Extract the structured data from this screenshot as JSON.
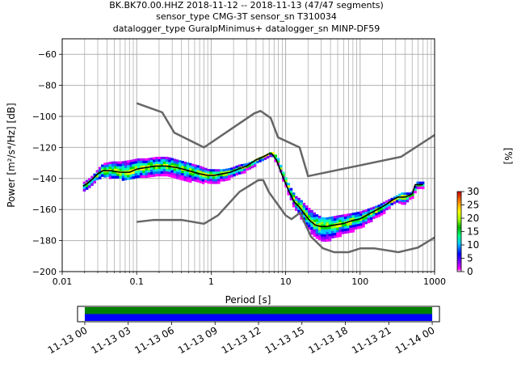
{
  "title_lines": [
    "BK.BK70.00.HHZ   2018-11-12 -- 2018-11-13  (47/47 segments)",
    "sensor_type CMG-3T sensor_sn T310034",
    "datalogger_type GuralpMinimus+ datalogger_sn MINP-DF59"
  ],
  "colors": {
    "median": "#000000",
    "noise_models": "#666666",
    "grid": "#b0b0b0",
    "coverage_green": "#008000",
    "coverage_blue": "#0000ff"
  },
  "chart_data": [
    {
      "type": "heatmap",
      "subtype": "probabilistic-psd",
      "xlabel": "Period [s]",
      "ylabel": "Power [m²/s⁴/Hz] [dB]",
      "x_scale": "log",
      "xlim": [
        0.01,
        1000
      ],
      "ylim": [
        -200,
        -50
      ],
      "xticks": [
        0.01,
        0.1,
        1,
        10,
        100,
        1000
      ],
      "xtick_labels": [
        "0.01",
        "0.1",
        "1",
        "10",
        "100",
        "1000"
      ],
      "yticks": [
        -200,
        -180,
        -160,
        -140,
        -120,
        -100,
        -80,
        -60
      ],
      "ytick_labels": [
        "−200",
        "−180",
        "−160",
        "−140",
        "−120",
        "−100",
        "−80",
        "−60"
      ],
      "grid": true,
      "colorbar": {
        "label": "[%]",
        "range": [
          0,
          30
        ],
        "ticks": [
          0,
          5,
          10,
          15,
          20,
          25,
          30
        ],
        "tick_labels": [
          "0",
          "5",
          "10",
          "15",
          "20",
          "25",
          "30"
        ],
        "colormap": "pqlx"
      },
      "median": {
        "x": [
          0.019,
          0.022,
          0.026,
          0.03,
          0.035,
          0.045,
          0.06,
          0.08,
          0.1,
          0.13,
          0.18,
          0.25,
          0.35,
          0.5,
          0.7,
          0.9,
          1.1,
          1.4,
          1.8,
          2.3,
          3,
          4,
          5,
          6,
          6.5,
          7.5,
          9,
          11,
          13,
          15,
          18,
          21,
          25,
          30,
          35,
          45,
          60,
          80,
          100,
          130,
          170,
          220,
          270,
          320,
          350,
          400,
          450,
          500,
          550,
          700
        ],
        "y": [
          -145,
          -143,
          -140,
          -137,
          -135,
          -135,
          -136,
          -136,
          -134,
          -133,
          -132,
          -132,
          -133,
          -135,
          -137,
          -138,
          -138,
          -137,
          -136,
          -134,
          -132,
          -128,
          -126,
          -124,
          -124,
          -128,
          -138,
          -148,
          -155,
          -158,
          -163,
          -167,
          -170,
          -171,
          -171,
          -170,
          -169,
          -167,
          -166,
          -163,
          -160,
          -157,
          -154,
          -152,
          -152,
          -152,
          -151,
          -150,
          -144,
          -144
        ]
      },
      "envelope": {
        "x": [
          0.019,
          0.022,
          0.026,
          0.03,
          0.035,
          0.045,
          0.06,
          0.08,
          0.1,
          0.13,
          0.18,
          0.25,
          0.35,
          0.5,
          0.7,
          0.9,
          1.1,
          1.4,
          1.8,
          2.3,
          3,
          4,
          5,
          6,
          6.5,
          7.5,
          9,
          11,
          13,
          15,
          18,
          21,
          25,
          30,
          35,
          45,
          60,
          80,
          100,
          130,
          170,
          220,
          270,
          320,
          350,
          400,
          450,
          500,
          550,
          700
        ],
        "y_low": [
          -147,
          -145,
          -142,
          -140,
          -138,
          -139,
          -140,
          -140,
          -139,
          -139,
          -138,
          -138,
          -139,
          -141,
          -142,
          -142,
          -143,
          -141,
          -139,
          -137,
          -134,
          -130,
          -128,
          -126,
          -126,
          -130,
          -141,
          -152,
          -160,
          -164,
          -170,
          -174,
          -178,
          -180,
          -180,
          -177,
          -175,
          -173,
          -171,
          -167,
          -164,
          -160,
          -156,
          -155,
          -156,
          -156,
          -153,
          -152,
          -146,
          -146
        ],
        "y_high": [
          -142,
          -140,
          -137,
          -133,
          -130,
          -129,
          -129,
          -128,
          -127,
          -127,
          -126,
          -126,
          -128,
          -130,
          -132,
          -134,
          -134,
          -134,
          -133,
          -131,
          -130,
          -127,
          -125,
          -123,
          -123,
          -126,
          -136,
          -145,
          -151,
          -153,
          -157,
          -160,
          -163,
          -165,
          -165,
          -164,
          -163,
          -162,
          -161,
          -159,
          -157,
          -154,
          -152,
          -150,
          -149,
          -149,
          -149,
          -148,
          -142,
          -142
        ]
      },
      "noise_models": [
        {
          "x": [
            0.1,
            0.22,
            0.32,
            0.8,
            3.8,
            4.6,
            6.3,
            7.9,
            15.4,
            20,
            354.8,
            1000
          ],
          "y": [
            -91.5,
            -97.4,
            -110.5,
            -120,
            -98,
            -96.5,
            -101,
            -113.5,
            -120,
            -138.5,
            -126,
            -112
          ]
        },
        {
          "x": [
            0.1,
            0.17,
            0.4,
            0.8,
            1.24,
            2.4,
            4.3,
            5,
            6,
            10,
            12,
            15.6,
            21.9,
            31.6,
            45,
            70,
            101,
            154,
            328,
            600,
            1000
          ],
          "y": [
            -168,
            -166.7,
            -166.7,
            -169.2,
            -163.7,
            -148.6,
            -141.1,
            -141.1,
            -149,
            -163.8,
            -166.2,
            -162.1,
            -177.5,
            -185,
            -187.5,
            -187.5,
            -185,
            -185,
            -187.5,
            -184.5,
            -178
          ]
        }
      ]
    },
    {
      "type": "bar",
      "subtype": "data-coverage",
      "x_type": "time",
      "xlim": [
        "2018-11-12 23:30",
        "2018-11-14 00:30"
      ],
      "ticks": [
        "11-13 00",
        "11-13 03",
        "11-13 06",
        "11-13 09",
        "11-13 12",
        "11-13 15",
        "11-13 18",
        "11-13 21",
        "11-14 00"
      ],
      "bands": [
        {
          "start": "2018-11-13 00:00",
          "end": "2018-11-14 00:00",
          "color": "#008000"
        },
        {
          "start": "2018-11-13 00:00",
          "end": "2018-11-14 00:00",
          "color": "#0000ff"
        }
      ]
    }
  ]
}
